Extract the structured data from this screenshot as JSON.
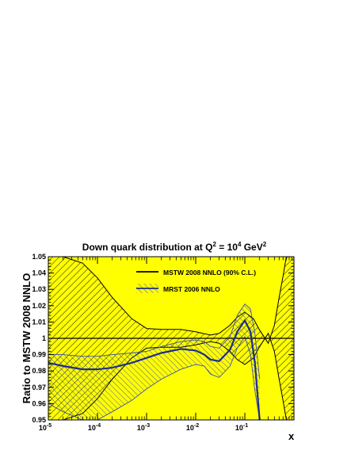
{
  "chart_data": {
    "type": "line",
    "title": "Down quark distribution at Q",
    "title_sup1": "2",
    "title_mid": " = 10",
    "title_sup2": "4",
    "title_unit": " GeV",
    "title_sup3": "2",
    "ylabel": "Ratio to MSTW 2008 NNLO",
    "xlabel": "x",
    "xscale": "log",
    "xlim": [
      1e-05,
      1
    ],
    "ylim": [
      0.95,
      1.05
    ],
    "yticks": [
      "0.95",
      "0.96",
      "0.97",
      "0.98",
      "0.99",
      "1",
      "1.01",
      "1.02",
      "1.03",
      "1.04",
      "1.05"
    ],
    "xticks": [
      {
        "base": "10",
        "exp": "-5"
      },
      {
        "base": "10",
        "exp": "-4"
      },
      {
        "base": "10",
        "exp": "-3"
      },
      {
        "base": "10",
        "exp": "-2"
      },
      {
        "base": "10",
        "exp": "-1"
      }
    ],
    "legend": {
      "placement": "top-right",
      "entries": [
        "MSTW 2008 NNLO (90% C.L.)",
        "MRST 2006 NNLO"
      ]
    },
    "colors": {
      "band_fill": "#ffff00",
      "band_edge": "#000000",
      "mrst": "#1f2c8f",
      "hatch": "#3a4fb0"
    },
    "series": [
      {
        "name": "MSTW 2008 NNLO (90% C.L.)",
        "x": [
          1e-05,
          2e-05,
          5e-05,
          0.0001,
          0.0002,
          0.0005,
          0.001,
          0.002,
          0.005,
          0.01,
          0.02,
          0.03,
          0.05,
          0.07,
          0.1,
          0.15,
          0.2,
          0.3,
          0.4,
          0.5,
          0.6,
          0.7,
          0.8,
          0.9,
          1.0
        ],
        "upper": [
          1.05,
          1.05,
          1.05,
          1.05,
          1.05,
          1.05,
          1.05,
          1.05,
          1.05,
          1.05,
          1.05,
          1.05,
          1.05,
          1.05,
          1.05,
          1.05,
          1.05,
          1.05,
          1.05,
          1.05,
          1.05,
          1.05,
          1.05,
          1.05,
          1.05
        ],
        "lower": [
          0.95,
          0.95,
          0.95,
          0.95,
          0.95,
          0.95,
          0.95,
          0.95,
          0.95,
          0.95,
          0.95,
          0.95,
          0.95,
          0.95,
          0.95,
          0.95,
          0.95,
          0.95,
          0.95,
          0.95,
          0.95,
          0.95,
          0.95,
          0.95,
          0.95
        ],
        "mstw_up": [
          1.05,
          1.05,
          1.046,
          1.037,
          1.025,
          1.012,
          1.006,
          1.0055,
          1.0055,
          1.004,
          1.002,
          1.003,
          1.008,
          1.013,
          1.016,
          1.012,
          1.005,
          0.997,
          1.008,
          1.025,
          1.038,
          1.05,
          1.05,
          1.05,
          1.05
        ],
        "mstw_lo": [
          0.95,
          0.95,
          0.95,
          0.95,
          0.95,
          0.95,
          0.95,
          0.95,
          0.95,
          0.95,
          0.95,
          0.95,
          0.95,
          0.95,
          0.95,
          0.95,
          0.95,
          0.95,
          0.95,
          0.95,
          0.95,
          0.95,
          0.95,
          0.95,
          0.95
        ]
      },
      {
        "name": "MRST 2006 NNLO",
        "x": [
          1e-05,
          2e-05,
          5e-05,
          0.0001,
          0.0002,
          0.0005,
          0.001,
          0.002,
          0.005,
          0.01,
          0.015,
          0.02,
          0.03,
          0.05,
          0.07,
          0.1,
          0.13,
          0.16,
          0.2
        ],
        "central": [
          0.985,
          0.983,
          0.981,
          0.981,
          0.982,
          0.985,
          0.988,
          0.991,
          0.9935,
          0.9925,
          0.99,
          0.987,
          0.986,
          0.993,
          1.004,
          1.011,
          1.004,
          0.985,
          0.95
        ],
        "upper": [
          0.99,
          0.99,
          0.989,
          0.989,
          0.99,
          0.991,
          0.992,
          0.995,
          0.998,
          0.999,
          0.998,
          0.995,
          0.994,
          1.001,
          1.014,
          1.021,
          1.018,
          1.003,
          0.975
        ],
        "lower": [
          0.96,
          0.955,
          0.95,
          0.95,
          0.955,
          0.962,
          0.969,
          0.975,
          0.981,
          0.984,
          0.983,
          0.978,
          0.976,
          0.983,
          0.994,
          1.001,
          0.99,
          0.968,
          0.95
        ]
      }
    ]
  }
}
